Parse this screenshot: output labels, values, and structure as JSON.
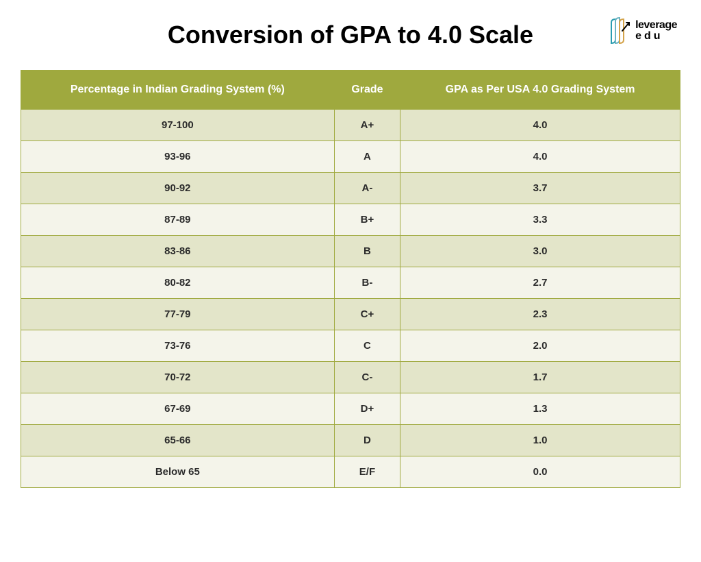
{
  "title": "Conversion of GPA to 4.0 Scale",
  "logo": {
    "line1": "leverage",
    "line2": "edu"
  },
  "colors": {
    "header_bg": "#9fa93e",
    "row_odd": "#e3e5c9",
    "row_even": "#f4f4ea",
    "border": "#9fa93e",
    "logo_c1": "#2a9db0",
    "logo_c2": "#6db3c1",
    "logo_c3": "#d4a34a"
  },
  "table": {
    "columns": [
      "Percentage in Indian Grading System (%)",
      "Grade",
      "GPA as Per USA 4.0 Grading System"
    ],
    "rows": [
      [
        "97-100",
        "A+",
        "4.0"
      ],
      [
        "93-96",
        "A",
        "4.0"
      ],
      [
        "90-92",
        "A-",
        "3.7"
      ],
      [
        "87-89",
        "B+",
        "3.3"
      ],
      [
        "83-86",
        "B",
        "3.0"
      ],
      [
        "80-82",
        "B-",
        "2.7"
      ],
      [
        "77-79",
        "C+",
        "2.3"
      ],
      [
        "73-76",
        "C",
        "2.0"
      ],
      [
        "70-72",
        "C-",
        "1.7"
      ],
      [
        "67-69",
        "D+",
        "1.3"
      ],
      [
        "65-66",
        "D",
        "1.0"
      ],
      [
        "Below 65",
        "E/F",
        "0.0"
      ]
    ]
  }
}
